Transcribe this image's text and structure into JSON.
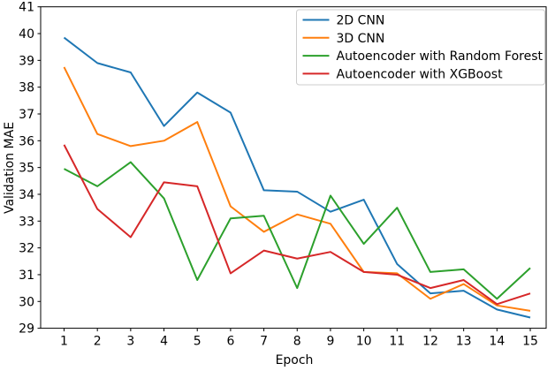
{
  "chart_data": {
    "type": "line",
    "title": "",
    "xlabel": "Epoch",
    "ylabel": "Validation MAE",
    "x": [
      1,
      2,
      3,
      4,
      5,
      6,
      7,
      8,
      9,
      10,
      11,
      12,
      13,
      14,
      15
    ],
    "ylim": [
      29,
      41
    ],
    "xlim_ticks": [
      1,
      15
    ],
    "yticks": [
      29,
      30,
      31,
      32,
      33,
      34,
      35,
      36,
      37,
      38,
      39,
      40,
      41
    ],
    "grid": false,
    "legend_position": "upper right",
    "legend_border_color": "#cccccc",
    "axis_color": "#000000",
    "background_color": "#ffffff",
    "series": [
      {
        "name": "2D CNN",
        "color": "#1f77b4",
        "values": [
          39.85,
          38.9,
          38.55,
          36.55,
          37.8,
          37.05,
          34.15,
          34.1,
          33.35,
          33.8,
          31.4,
          30.3,
          30.4,
          29.7,
          29.4
        ]
      },
      {
        "name": "3D CNN",
        "color": "#ff7f0e",
        "values": [
          38.75,
          36.25,
          35.8,
          36.0,
          36.7,
          33.55,
          32.6,
          33.25,
          32.9,
          31.1,
          31.05,
          30.1,
          30.65,
          29.85,
          29.65
        ]
      },
      {
        "name": "Autoencoder with Random Forest",
        "color": "#2ca02c",
        "values": [
          34.95,
          34.3,
          35.2,
          33.85,
          30.8,
          33.1,
          33.2,
          30.5,
          33.95,
          32.15,
          33.5,
          31.1,
          31.2,
          30.1,
          31.25
        ]
      },
      {
        "name": "Autoencoder with XGBoost",
        "color": "#d62728",
        "values": [
          35.85,
          33.45,
          32.4,
          34.45,
          34.3,
          31.05,
          31.9,
          31.6,
          31.85,
          31.1,
          31.0,
          30.5,
          30.8,
          29.9,
          30.3
        ]
      }
    ]
  }
}
